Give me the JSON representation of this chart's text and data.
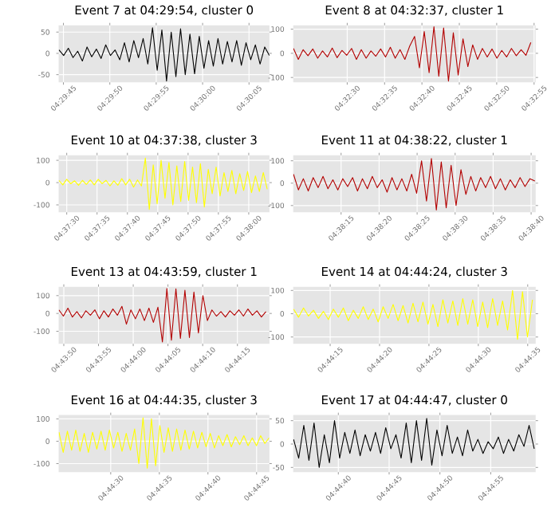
{
  "chart_data": [
    {
      "type": "line",
      "title": "Event 7 at 04:29:54, cluster 0",
      "color": "#000000",
      "grid": true,
      "xlim": [
        4.49569,
        4.502
      ],
      "ylim": [
        -68,
        66
      ],
      "yticks": [
        -50,
        0,
        50
      ],
      "xticks": [
        {
          "value": 4.495833,
          "label": "04:29:45"
        },
        {
          "value": 4.497222,
          "label": "04:29:50"
        },
        {
          "value": 4.498611,
          "label": "04:29:55"
        },
        {
          "value": 4.5,
          "label": "04:30:00"
        },
        {
          "value": 4.501389,
          "label": "04:30:05"
        }
      ],
      "x": [
        4.4957,
        4.49584,
        4.49598,
        4.49612,
        4.49626,
        4.4964,
        4.49654,
        4.49668,
        4.49682,
        4.49696,
        4.4971,
        4.49724,
        4.49738,
        4.49752,
        4.49766,
        4.4978,
        4.49794,
        4.49808,
        4.49822,
        4.49836,
        4.4985,
        4.49864,
        4.49878,
        4.49892,
        4.49906,
        4.4992,
        4.49934,
        4.49948,
        4.49962,
        4.49976,
        4.4999,
        4.50004,
        4.50018,
        4.50032,
        4.50046,
        4.5006,
        4.50074,
        4.50088,
        4.50102,
        4.50116,
        4.5013,
        4.50144,
        4.50158,
        4.50172,
        4.50186,
        4.502
      ],
      "values": [
        8,
        -5,
        12,
        -10,
        5,
        -18,
        15,
        -8,
        10,
        -12,
        20,
        -5,
        8,
        -15,
        25,
        -20,
        30,
        -10,
        35,
        -25,
        60,
        -40,
        55,
        -65,
        50,
        -55,
        58,
        -50,
        45,
        -48,
        40,
        -35,
        30,
        -30,
        35,
        -25,
        28,
        -20,
        30,
        -28,
        25,
        -15,
        20,
        -25,
        15,
        -5
      ]
    },
    {
      "type": "line",
      "title": "Event 8 at 04:32:37, cluster 1",
      "color": "#b30000",
      "grid": true,
      "xlim": [
        4.53966,
        4.54867
      ],
      "ylim": [
        -120,
        116
      ],
      "yticks": [
        -100,
        0,
        100
      ],
      "xticks": [
        {
          "value": 4.541667,
          "label": "04:32:30"
        },
        {
          "value": 4.543056,
          "label": "04:32:35"
        },
        {
          "value": 4.544444,
          "label": "04:32:40"
        },
        {
          "value": 4.545833,
          "label": "04:32:45"
        },
        {
          "value": 4.547222,
          "label": "04:32:50"
        },
        {
          "value": 4.548611,
          "label": "04:32:55"
        }
      ],
      "x": [
        4.53967,
        4.53985,
        4.54003,
        4.54021,
        4.54039,
        4.54057,
        4.54075,
        4.54093,
        4.54111,
        4.54129,
        4.54147,
        4.54165,
        4.54183,
        4.54201,
        4.54219,
        4.54237,
        4.54255,
        4.54273,
        4.54291,
        4.54309,
        4.54327,
        4.54345,
        4.54363,
        4.54381,
        4.54399,
        4.54417,
        4.54435,
        4.54453,
        4.54471,
        4.54489,
        4.54507,
        4.54525,
        4.54543,
        4.54561,
        4.54579,
        4.54597,
        4.54615,
        4.54633,
        4.54651,
        4.54669,
        4.54687,
        4.54705,
        4.54723,
        4.54741,
        4.54759,
        4.54777,
        4.54795,
        4.54813,
        4.54831,
        4.54849
      ],
      "values": [
        20,
        -25,
        15,
        -10,
        18,
        -20,
        10,
        -15,
        22,
        -18,
        12,
        -8,
        20,
        -25,
        15,
        -20,
        10,
        -12,
        18,
        -15,
        25,
        -20,
        15,
        -25,
        30,
        70,
        -60,
        90,
        -80,
        110,
        -95,
        105,
        -115,
        85,
        -90,
        60,
        -55,
        35,
        -25,
        20,
        -15,
        18,
        -20,
        12,
        -15,
        20,
        -10,
        15,
        -8,
        45
      ]
    },
    {
      "type": "line",
      "title": "Event 10 at 04:37:38, cluster 3",
      "color": "#ffff00",
      "grid": true,
      "xlim": [
        4.62463,
        4.63428
      ],
      "ylim": [
        -133,
        123
      ],
      "yticks": [
        -100,
        0,
        100
      ],
      "xticks": [
        {
          "value": 4.625,
          "label": "04:37:30"
        },
        {
          "value": 4.626389,
          "label": "04:37:35"
        },
        {
          "value": 4.627778,
          "label": "04:37:40"
        },
        {
          "value": 4.629167,
          "label": "04:37:45"
        },
        {
          "value": 4.630556,
          "label": "04:37:50"
        },
        {
          "value": 4.631944,
          "label": "04:37:55"
        },
        {
          "value": 4.633333,
          "label": "04:38:00"
        }
      ],
      "x": [
        4.62464,
        4.62482,
        4.625,
        4.62518,
        4.62536,
        4.62554,
        4.62572,
        4.6259,
        4.62608,
        4.62626,
        4.62644,
        4.62662,
        4.6268,
        4.62698,
        4.62716,
        4.62734,
        4.62752,
        4.6277,
        4.62788,
        4.62806,
        4.62824,
        4.62842,
        4.6286,
        4.62878,
        4.62896,
        4.62914,
        4.62932,
        4.6295,
        4.62968,
        4.62986,
        4.63004,
        4.63022,
        4.6304,
        4.63058,
        4.63076,
        4.63094,
        4.63112,
        4.6313,
        4.63148,
        4.63166,
        4.63184,
        4.63202,
        4.6322,
        4.63238,
        4.63256,
        4.63274,
        4.63292,
        4.6331,
        4.63328,
        4.63346,
        4.63364,
        4.63382,
        4.634,
        4.63418
      ],
      "values": [
        10,
        -10,
        15,
        -5,
        8,
        -12,
        10,
        -8,
        12,
        -10,
        15,
        -5,
        10,
        -15,
        8,
        -12,
        18,
        -10,
        15,
        -20,
        12,
        -15,
        110,
        -120,
        80,
        -95,
        100,
        -70,
        90,
        -100,
        75,
        -85,
        95,
        -80,
        70,
        -90,
        85,
        -110,
        60,
        -50,
        70,
        -60,
        45,
        -40,
        55,
        -50,
        40,
        -35,
        50,
        -45,
        30,
        -40,
        45,
        -30
      ]
    },
    {
      "type": "line",
      "title": "Event 11 at 04:38:22, cluster 1",
      "color": "#b30000",
      "grid": true,
      "xlim": [
        4.63575,
        4.64461
      ],
      "ylim": [
        -130,
        125
      ],
      "yticks": [
        -100,
        0,
        100
      ],
      "xticks": [
        {
          "value": 4.6375,
          "label": "04:38:15"
        },
        {
          "value": 4.638889,
          "label": "04:38:20"
        },
        {
          "value": 4.640278,
          "label": "04:38:25"
        },
        {
          "value": 4.641667,
          "label": "04:38:30"
        },
        {
          "value": 4.643056,
          "label": "04:38:35"
        },
        {
          "value": 4.644444,
          "label": "04:38:40"
        }
      ],
      "x": [
        4.63576,
        4.63594,
        4.63612,
        4.6363,
        4.63648,
        4.63666,
        4.63684,
        4.63702,
        4.6372,
        4.63738,
        4.63756,
        4.63774,
        4.63792,
        4.6381,
        4.63828,
        4.63846,
        4.63864,
        4.63882,
        4.639,
        4.63918,
        4.63936,
        4.63954,
        4.63972,
        4.6399,
        4.64008,
        4.64026,
        4.64044,
        4.64062,
        4.6408,
        4.64098,
        4.64116,
        4.64134,
        4.64152,
        4.6417,
        4.64188,
        4.64206,
        4.64224,
        4.64242,
        4.6426,
        4.64278,
        4.64296,
        4.64314,
        4.64332,
        4.6435,
        4.64368,
        4.64386,
        4.64404,
        4.64422,
        4.6444,
        4.64458
      ],
      "values": [
        40,
        -30,
        20,
        -35,
        25,
        -20,
        30,
        -25,
        15,
        -30,
        20,
        -15,
        25,
        -35,
        20,
        -25,
        30,
        -20,
        15,
        -40,
        25,
        -30,
        20,
        -35,
        40,
        -45,
        100,
        -80,
        110,
        -120,
        95,
        -110,
        80,
        -100,
        60,
        -50,
        30,
        -35,
        25,
        -20,
        30,
        -25,
        20,
        -30,
        15,
        -20,
        25,
        -15,
        20,
        10
      ]
    },
    {
      "type": "line",
      "title": "Event 13 at 04:43:59, cluster 1",
      "color": "#b30000",
      "grid": true,
      "xlim": [
        4.73035,
        4.73878
      ],
      "ylim": [
        -170,
        150
      ],
      "yticks": [
        -100,
        0,
        100
      ],
      "xticks": [
        {
          "value": 4.730556,
          "label": "04:43:50"
        },
        {
          "value": 4.731944,
          "label": "04:43:55"
        },
        {
          "value": 4.733333,
          "label": "04:44:00"
        },
        {
          "value": 4.734722,
          "label": "04:44:05"
        },
        {
          "value": 4.736111,
          "label": "04:44:10"
        },
        {
          "value": 4.7375,
          "label": "04:44:15"
        }
      ],
      "x": [
        4.73036,
        4.73054,
        4.73072,
        4.7309,
        4.73108,
        4.73126,
        4.73144,
        4.73162,
        4.7318,
        4.73198,
        4.73216,
        4.73234,
        4.73252,
        4.7327,
        4.73288,
        4.73306,
        4.73324,
        4.73342,
        4.7336,
        4.73378,
        4.73396,
        4.73414,
        4.73432,
        4.7345,
        4.73468,
        4.73486,
        4.73504,
        4.73522,
        4.7354,
        4.73558,
        4.73576,
        4.73594,
        4.73612,
        4.7363,
        4.73648,
        4.73666,
        4.73684,
        4.73702,
        4.7372,
        4.73738,
        4.73756,
        4.73774,
        4.73792,
        4.7381,
        4.73828,
        4.73846,
        4.73864
      ],
      "values": [
        20,
        -15,
        30,
        -20,
        10,
        -25,
        15,
        -10,
        20,
        -30,
        15,
        -20,
        25,
        -10,
        40,
        -60,
        20,
        -30,
        25,
        -40,
        30,
        -50,
        35,
        -160,
        140,
        -150,
        138,
        -140,
        130,
        -135,
        120,
        -110,
        100,
        -40,
        20,
        -15,
        10,
        -20,
        15,
        -10,
        20,
        -15,
        25,
        -10,
        15,
        -20,
        10
      ]
    },
    {
      "type": "line",
      "title": "Event 14 at 04:44:24, cluster 3",
      "color": "#ffff00",
      "grid": true,
      "xlim": [
        4.73646,
        4.74328
      ],
      "ylim": [
        -129,
        116
      ],
      "yticks": [
        -100,
        0,
        100
      ],
      "xticks": [
        {
          "value": 4.7375,
          "label": "04:44:15"
        },
        {
          "value": 4.738889,
          "label": "04:44:20"
        },
        {
          "value": 4.740278,
          "label": "04:44:25"
        },
        {
          "value": 4.741667,
          "label": "04:44:30"
        },
        {
          "value": 4.743056,
          "label": "04:44:35"
        }
      ],
      "x": [
        4.73647,
        4.73661,
        4.73675,
        4.73689,
        4.73703,
        4.73717,
        4.73731,
        4.73745,
        4.73759,
        4.73773,
        4.73787,
        4.73801,
        4.73815,
        4.73829,
        4.73843,
        4.73857,
        4.73871,
        4.73885,
        4.73899,
        4.73913,
        4.73927,
        4.73941,
        4.73955,
        4.73969,
        4.73983,
        4.73997,
        4.74011,
        4.74025,
        4.74039,
        4.74053,
        4.74067,
        4.74081,
        4.74095,
        4.74109,
        4.74123,
        4.74137,
        4.74151,
        4.74165,
        4.74179,
        4.74193,
        4.74207,
        4.74221,
        4.74235,
        4.74249,
        4.74263,
        4.74277,
        4.74291,
        4.74305,
        4.74319
      ],
      "values": [
        20,
        -15,
        25,
        -10,
        15,
        -20,
        10,
        -25,
        20,
        -15,
        25,
        -30,
        15,
        -20,
        30,
        -25,
        20,
        -35,
        30,
        -20,
        40,
        -30,
        35,
        -40,
        45,
        -35,
        50,
        -45,
        40,
        -55,
        60,
        -40,
        55,
        -50,
        65,
        -45,
        60,
        -55,
        50,
        -60,
        65,
        -50,
        55,
        -70,
        100,
        -110,
        95,
        -100,
        60
      ]
    },
    {
      "type": "line",
      "title": "Event 16 at 04:44:35, cluster 3",
      "color": "#ffff00",
      "grid": true,
      "xlim": [
        4.74018,
        4.7462
      ],
      "ylim": [
        -138,
        117
      ],
      "yticks": [
        -100,
        0,
        100
      ],
      "xticks": [
        {
          "value": 4.741667,
          "label": "04:44:30"
        },
        {
          "value": 4.743056,
          "label": "04:44:35"
        },
        {
          "value": 4.744444,
          "label": "04:44:40"
        },
        {
          "value": 4.745833,
          "label": "04:44:45"
        }
      ],
      "x": [
        4.74019,
        4.74031,
        4.74043,
        4.74055,
        4.74067,
        4.74079,
        4.74091,
        4.74103,
        4.74115,
        4.74127,
        4.74139,
        4.74151,
        4.74163,
        4.74175,
        4.74187,
        4.74199,
        4.74211,
        4.74223,
        4.74235,
        4.74247,
        4.74259,
        4.74271,
        4.74283,
        4.74295,
        4.74307,
        4.74319,
        4.74331,
        4.74343,
        4.74355,
        4.74367,
        4.74379,
        4.74391,
        4.74403,
        4.74415,
        4.74427,
        4.74439,
        4.74451,
        4.74463,
        4.74475,
        4.74487,
        4.74499,
        4.74511,
        4.74523,
        4.74535,
        4.74547,
        4.74559,
        4.74571,
        4.74583,
        4.74595,
        4.74607,
        4.74619
      ],
      "values": [
        40,
        -50,
        45,
        -40,
        50,
        -45,
        35,
        -50,
        40,
        -35,
        45,
        -40,
        50,
        -30,
        40,
        -45,
        35,
        -40,
        55,
        -100,
        105,
        -120,
        100,
        -110,
        70,
        -50,
        60,
        -45,
        55,
        -40,
        50,
        -35,
        45,
        -30,
        40,
        -25,
        35,
        -30,
        25,
        -20,
        30,
        -25,
        20,
        -15,
        25,
        -20,
        15,
        -20,
        25,
        -10,
        15
      ]
    },
    {
      "type": "line",
      "title": "Event 17 at 04:44:47, cluster 0",
      "color": "#000000",
      "grid": true,
      "xlim": [
        4.74321,
        4.74984
      ],
      "ylim": [
        -60,
        62
      ],
      "yticks": [
        -50,
        0,
        50
      ],
      "xticks": [
        {
          "value": 4.744444,
          "label": "04:44:40"
        },
        {
          "value": 4.745833,
          "label": "04:44:45"
        },
        {
          "value": 4.747222,
          "label": "04:44:50"
        },
        {
          "value": 4.748611,
          "label": "04:44:55"
        }
      ],
      "x": [
        4.74322,
        4.74336,
        4.7435,
        4.74364,
        4.74378,
        4.74392,
        4.74406,
        4.7442,
        4.74434,
        4.74448,
        4.74462,
        4.74476,
        4.7449,
        4.74504,
        4.74518,
        4.74532,
        4.74546,
        4.7456,
        4.74574,
        4.74588,
        4.74602,
        4.74616,
        4.7463,
        4.74644,
        4.74658,
        4.74672,
        4.74686,
        4.747,
        4.74714,
        4.74728,
        4.74742,
        4.74756,
        4.7477,
        4.74784,
        4.74798,
        4.74812,
        4.74826,
        4.7484,
        4.74854,
        4.74868,
        4.74882,
        4.74896,
        4.7491,
        4.74924,
        4.74938,
        4.74952,
        4.74966,
        4.7498
      ],
      "values": [
        10,
        -30,
        40,
        -35,
        45,
        -50,
        20,
        -40,
        50,
        -30,
        25,
        -20,
        30,
        -25,
        20,
        -15,
        25,
        -20,
        35,
        -10,
        20,
        -30,
        45,
        -40,
        50,
        -35,
        55,
        -45,
        30,
        -25,
        40,
        -20,
        15,
        -25,
        30,
        -15,
        10,
        -20,
        5,
        -10,
        15,
        -20,
        10,
        -15,
        20,
        -5,
        40,
        -10
      ]
    }
  ]
}
